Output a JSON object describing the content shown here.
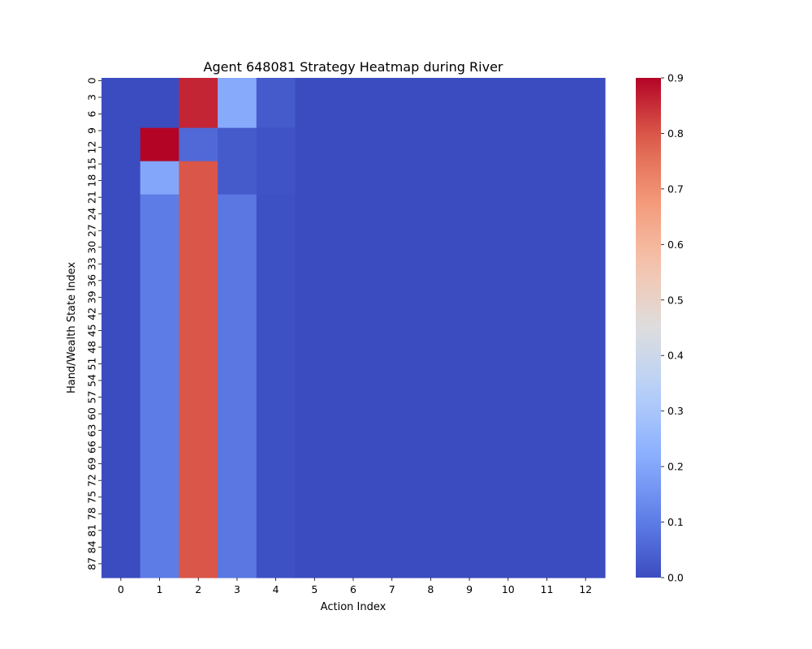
{
  "chart_data": {
    "type": "heatmap",
    "title": "Agent 648081 Strategy Heatmap during River",
    "xlabel": "Action Index",
    "ylabel": "Hand/Wealth State Index",
    "x_categories": [
      "0",
      "1",
      "2",
      "3",
      "4",
      "5",
      "6",
      "7",
      "8",
      "9",
      "10",
      "11",
      "12"
    ],
    "y_tick_labels": [
      "0",
      "3",
      "6",
      "9",
      "12",
      "15",
      "18",
      "21",
      "24",
      "27",
      "30",
      "33",
      "36",
      "39",
      "42",
      "45",
      "48",
      "51",
      "54",
      "57",
      "60",
      "63",
      "66",
      "69",
      "72",
      "75",
      "78",
      "81",
      "84",
      "87"
    ],
    "row_count": 90,
    "colormap": "coolwarm",
    "colorbar": {
      "range": [
        0.0,
        0.9
      ],
      "tick_labels": [
        "0.0",
        "0.1",
        "0.2",
        "0.3",
        "0.4",
        "0.5",
        "0.6",
        "0.7",
        "0.8",
        "0.9"
      ]
    },
    "row_groups": [
      {
        "rows": [
          0,
          8
        ],
        "values": [
          0,
          0,
          0.86,
          0.21,
          0.03,
          0,
          0,
          0,
          0,
          0,
          0,
          0,
          0
        ]
      },
      {
        "rows": [
          9,
          14
        ],
        "values": [
          0,
          0.9,
          0.06,
          0.03,
          0.015,
          0,
          0,
          0,
          0,
          0,
          0,
          0,
          0
        ]
      },
      {
        "rows": [
          15,
          20
        ],
        "values": [
          0,
          0.2,
          0.8,
          0.03,
          0.015,
          0,
          0,
          0,
          0,
          0,
          0,
          0,
          0
        ]
      },
      {
        "rows": [
          21,
          89
        ],
        "values": [
          0,
          0.1,
          0.8,
          0.09,
          0.01,
          0,
          0,
          0,
          0,
          0,
          0,
          0,
          0
        ]
      }
    ]
  }
}
